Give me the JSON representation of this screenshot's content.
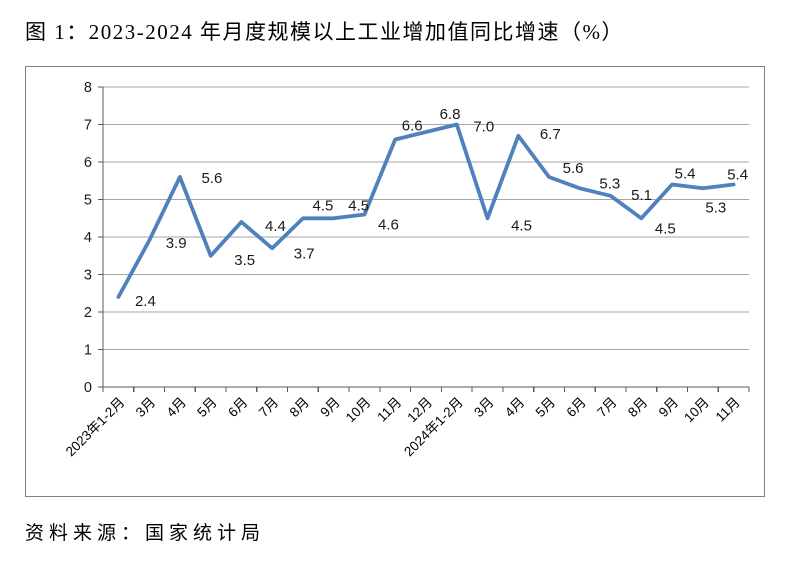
{
  "page": {
    "title": "图 1：2023-2024 年月度规模以上工业增加值同比增速（%）",
    "source": "资料来源：国家统计局"
  },
  "chart_data": {
    "type": "line",
    "title": "图 1：2023-2024 年月度规模以上工业增加值同比增速（%）",
    "categories": [
      "2023年1-2月",
      "3月",
      "4月",
      "5月",
      "6月",
      "7月",
      "8月",
      "9月",
      "10月",
      "11月",
      "12月",
      "2024年1-2月",
      "3月",
      "4月",
      "5月",
      "6月",
      "7月",
      "8月",
      "9月",
      "10月",
      "11月"
    ],
    "values": [
      2.4,
      3.9,
      5.6,
      3.5,
      4.4,
      3.7,
      4.5,
      4.5,
      4.6,
      6.6,
      6.8,
      7.0,
      4.5,
      6.7,
      5.6,
      5.3,
      5.1,
      4.5,
      5.4,
      5.3,
      5.4
    ],
    "data_labels": [
      "2.4",
      "3.9",
      "5.6",
      "3.5",
      "4.4",
      "3.7",
      "4.5",
      "4.5",
      "4.6",
      "6.6",
      "6.8",
      "7.0",
      "4.5",
      "6.7",
      "5.6",
      "5.3",
      "5.1",
      "4.5",
      "5.4",
      "5.3",
      "5.4"
    ],
    "xlabel": "",
    "ylabel": "",
    "ylim": [
      0,
      8
    ],
    "ytick_step": 1,
    "grid": true,
    "legend_position": "none",
    "colors": {
      "line": "#4F81BD",
      "gridline": "#A6A6A6",
      "axis": "#595959",
      "frame_border": "#808080",
      "label_text": "#1A1A1A"
    }
  }
}
